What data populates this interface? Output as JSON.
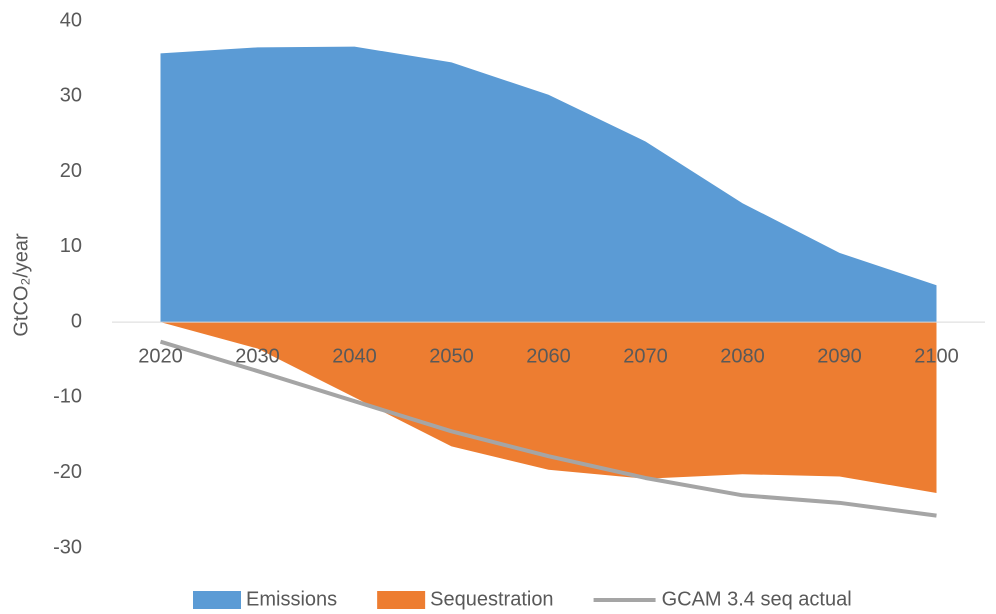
{
  "chart_data": {
    "type": "area",
    "y_label": "GtCO₂/year",
    "categories": [
      "2020",
      "2030",
      "2040",
      "2050",
      "2060",
      "2070",
      "2080",
      "2090",
      "2100"
    ],
    "series": [
      {
        "name": "Emissions",
        "type": "area",
        "color": "#5b9bd5",
        "values": [
          35.7,
          36.5,
          36.6,
          34.5,
          30.2,
          24,
          15.8,
          9.2,
          4.9
        ]
      },
      {
        "name": "Sequestration",
        "type": "area",
        "color": "#ed7d31",
        "values": [
          0,
          -3.5,
          -10,
          -16.5,
          -19.6,
          -20.8,
          -20.2,
          -20.5,
          -22.7
        ]
      },
      {
        "name": "GCAM 3.4 seq actual",
        "type": "line",
        "color": "#a5a5a5",
        "values": [
          -2.6,
          -6.5,
          -10.5,
          -14.5,
          -17.8,
          -20.7,
          -23,
          -24,
          -25.7
        ]
      }
    ],
    "ylim": [
      -30,
      40
    ],
    "yticks": [
      -30,
      -20,
      -10,
      0,
      10,
      20,
      30,
      40
    ],
    "grid": false,
    "legend": "bottom"
  }
}
